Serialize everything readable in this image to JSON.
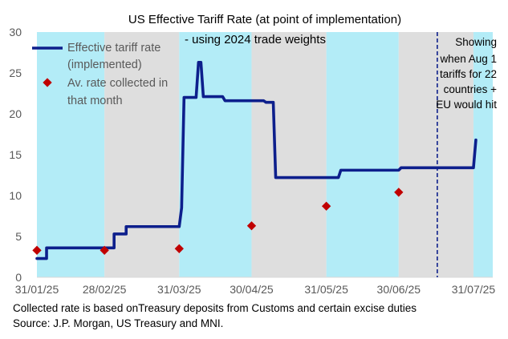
{
  "chart_data": {
    "type": "line",
    "title": "US Effective Tariff Rate (at point of implementation)",
    "subtitle": "- using 2024 trade weights",
    "ylim": [
      0,
      30
    ],
    "yticks": [
      0,
      5,
      10,
      15,
      20,
      25,
      30
    ],
    "xlim_days": [
      0,
      189
    ],
    "xticks": [
      {
        "day": 0,
        "label": "31/01/25"
      },
      {
        "day": 28,
        "label": "28/02/25"
      },
      {
        "day": 59,
        "label": "31/03/25"
      },
      {
        "day": 89,
        "label": "30/04/25"
      },
      {
        "day": 120,
        "label": "31/05/25"
      },
      {
        "day": 150,
        "label": "30/06/25"
      },
      {
        "day": 181,
        "label": "31/07/25"
      }
    ],
    "month_bands": [
      {
        "start": 0,
        "end": 28,
        "color": "#b3ecf7"
      },
      {
        "start": 28,
        "end": 59,
        "color": "#dedede"
      },
      {
        "start": 59,
        "end": 89,
        "color": "#b3ecf7"
      },
      {
        "start": 89,
        "end": 120,
        "color": "#dedede"
      },
      {
        "start": 120,
        "end": 150,
        "color": "#b3ecf7"
      },
      {
        "start": 150,
        "end": 181,
        "color": "#dedede"
      },
      {
        "start": 181,
        "end": 189,
        "color": "#b3ecf7"
      }
    ],
    "series": [
      {
        "name": "Effective tariff rate (implemented)",
        "kind": "step-line",
        "color": "#0d1f8c",
        "points": [
          [
            0,
            2.3
          ],
          [
            4,
            2.3
          ],
          [
            4,
            3.6
          ],
          [
            32,
            3.6
          ],
          [
            32,
            5.3
          ],
          [
            37,
            5.3
          ],
          [
            37,
            6.2
          ],
          [
            59,
            6.2
          ],
          [
            60,
            8.5
          ],
          [
            61,
            22.0
          ],
          [
            66,
            22.0
          ],
          [
            67,
            26.3
          ],
          [
            68,
            26.3
          ],
          [
            69,
            22.1
          ],
          [
            77,
            22.1
          ],
          [
            78,
            21.6
          ],
          [
            94,
            21.6
          ],
          [
            95,
            21.4
          ],
          [
            98,
            21.4
          ],
          [
            99,
            12.2
          ],
          [
            111,
            12.2
          ],
          [
            125,
            12.2
          ],
          [
            126,
            13.1
          ],
          [
            150,
            13.1
          ],
          [
            151,
            13.4
          ],
          [
            181,
            13.4
          ],
          [
            182,
            16.8
          ]
        ]
      },
      {
        "name": "Av. rate collected in that month",
        "kind": "markers",
        "color": "#c00000",
        "points": [
          [
            0,
            3.3
          ],
          [
            28,
            3.3
          ],
          [
            59,
            3.5
          ],
          [
            89,
            6.3
          ],
          [
            120,
            8.7
          ],
          [
            150,
            10.4
          ]
        ]
      }
    ],
    "legend": [
      {
        "line1": "Effective tariff rate",
        "line2": "(implemented)"
      },
      {
        "line1": "Av. rate collected in",
        "line2": "that month"
      }
    ],
    "annotation": {
      "day": 166,
      "lines": [
        "Showing",
        "when Aug 1",
        "tariffs for 22",
        "countries +",
        "EU would hit"
      ]
    }
  },
  "footer": {
    "line1": "Collected rate is  based onTreasury deposits from Customs and certain excise duties",
    "line2": "Source: J.P. Morgan, US Treasury and MNI."
  },
  "colors": {
    "axis_text": "#595959",
    "line": "#0d1f8c",
    "marker": "#c00000",
    "dash": "#0d1f8c"
  }
}
